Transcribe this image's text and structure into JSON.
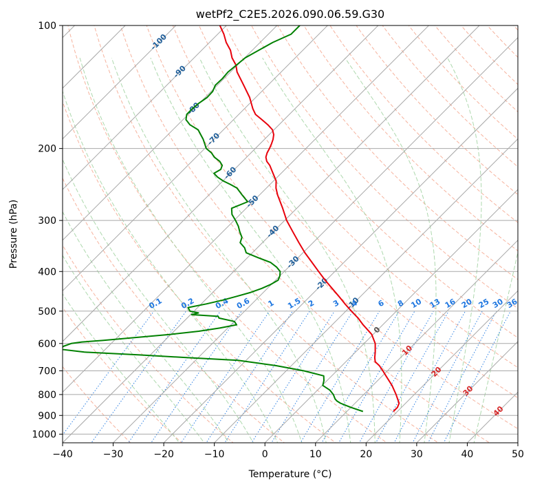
{
  "chart_data": {
    "type": "line",
    "chart_kind": "skew-T log-P diagram",
    "title": "wetPf2_C2E5.2026.090.06.59.G30",
    "xlabel": "Temperature (°C)",
    "ylabel": "Pressure (hPa)",
    "xlim": [
      -40,
      50
    ],
    "ylim": [
      1050,
      100
    ],
    "y_scale": "log",
    "skew_degrees": 45,
    "grid": true,
    "x_ticks": [
      -40,
      -30,
      -20,
      -10,
      0,
      10,
      20,
      30,
      40,
      50
    ],
    "y_ticks": [
      1000,
      900,
      800,
      700,
      600,
      500,
      400,
      300,
      200,
      100
    ],
    "x_tick_labels": [
      "−40",
      "−30",
      "−20",
      "−10",
      "0",
      "10",
      "20",
      "30",
      "40",
      "50"
    ],
    "y_tick_labels": [
      "1000",
      "900",
      "800",
      "700",
      "600",
      "500",
      "400",
      "300",
      "200",
      "100"
    ],
    "colors": {
      "temperature": "#e8000b",
      "dewpoint": "#008000",
      "isotherm": "#a8a8a8",
      "dry_adiabat": "#f4a58c",
      "moist_adiabat": "#9fd19f",
      "mixing_ratio": "#1f77e0",
      "isotherm_label": "#1f5e99",
      "wetbulb_label": "#d62728"
    },
    "isotherm_labels": [
      {
        "t": -100,
        "p": 110,
        "text": "-100"
      },
      {
        "t": -90,
        "p": 130,
        "text": "-90"
      },
      {
        "t": -80,
        "p": 160,
        "text": "-80"
      },
      {
        "t": -70,
        "p": 190,
        "text": "-70"
      },
      {
        "t": -60,
        "p": 230,
        "text": "-60"
      },
      {
        "t": -50,
        "p": 270,
        "text": "-50"
      },
      {
        "t": -40,
        "p": 320,
        "text": "-40"
      },
      {
        "t": -30,
        "p": 380,
        "text": "-30"
      },
      {
        "t": -20,
        "p": 430,
        "text": "-20"
      },
      {
        "t": -10,
        "p": 480,
        "text": "-10"
      }
    ],
    "mixing_ratio_labels": [
      {
        "w": 0.1,
        "text": "0.1"
      },
      {
        "w": 0.2,
        "text": "0.2"
      },
      {
        "w": 0.4,
        "text": "0.4"
      },
      {
        "w": 0.6,
        "text": "0.6"
      },
      {
        "w": 1,
        "text": "1"
      },
      {
        "w": 1.5,
        "text": "1.5"
      },
      {
        "w": 2,
        "text": "2"
      },
      {
        "w": 3,
        "text": "3"
      },
      {
        "w": 4,
        "text": "4"
      },
      {
        "w": 6,
        "text": "6"
      },
      {
        "w": 8,
        "text": "8"
      },
      {
        "w": 10,
        "text": "10"
      },
      {
        "w": 13,
        "text": "13"
      },
      {
        "w": 16,
        "text": "16"
      },
      {
        "w": 20,
        "text": "20"
      },
      {
        "w": 25,
        "text": "25"
      },
      {
        "w": 30,
        "text": "30"
      },
      {
        "w": 36,
        "text": "36"
      }
    ],
    "wetbulb_labels": [
      {
        "t": 0,
        "p": 557,
        "text": "0"
      },
      {
        "t": 10,
        "p": 625,
        "text": "10"
      },
      {
        "t": 20,
        "p": 705,
        "text": "20"
      },
      {
        "t": 30,
        "p": 785,
        "text": "30"
      },
      {
        "t": 40,
        "p": 880,
        "text": "40"
      }
    ],
    "series": [
      {
        "id": "temperature",
        "p": [
          880,
          860,
          840,
          800,
          760,
          720,
          700,
          680,
          665,
          650,
          630,
          600,
          570,
          540,
          520,
          500,
          480,
          460,
          440,
          420,
          400,
          380,
          360,
          340,
          320,
          300,
          280,
          260,
          250,
          240,
          230,
          220,
          215,
          210,
          205,
          200,
          195,
          190,
          185,
          180,
          175,
          170,
          165,
          160,
          150,
          140,
          130,
          125,
          120,
          115,
          110,
          105,
          100
        ],
        "t": [
          19.2,
          19.2,
          18.7,
          16.4,
          13.8,
          10.7,
          9.1,
          7.4,
          5.8,
          4.9,
          3.9,
          2.2,
          -0.3,
          -3.9,
          -6.2,
          -8.9,
          -11.6,
          -14.3,
          -17.2,
          -20.2,
          -23.2,
          -26.3,
          -29.6,
          -32.8,
          -36.1,
          -39.6,
          -42.8,
          -46.4,
          -48.1,
          -49.5,
          -51.6,
          -53.8,
          -55.2,
          -56.2,
          -56.8,
          -57.2,
          -57.7,
          -58.3,
          -59.1,
          -60.3,
          -62.2,
          -64.4,
          -66.7,
          -68.3,
          -71.2,
          -74.8,
          -78.7,
          -80.3,
          -82.5,
          -84.3,
          -86.7,
          -88.8,
          -91.3
        ]
      },
      {
        "id": "dewpoint",
        "p": [
          880,
          860,
          840,
          830,
          820,
          800,
          780,
          760,
          740,
          720,
          700,
          680,
          660,
          650,
          640,
          630,
          620,
          610,
          600,
          595,
          590,
          580,
          570,
          560,
          550,
          540,
          530,
          520,
          515,
          510,
          505,
          500,
          490,
          480,
          470,
          460,
          450,
          440,
          430,
          420,
          410,
          400,
          390,
          380,
          370,
          360,
          350,
          340,
          330,
          320,
          310,
          300,
          290,
          280,
          270,
          260,
          250,
          245,
          240,
          235,
          230,
          225,
          220,
          215,
          210,
          205,
          200,
          190,
          180,
          175,
          170,
          165,
          160,
          155,
          150,
          145,
          140,
          135,
          130,
          120,
          110,
          105,
          100
        ],
        "t": [
          13.2,
          10.0,
          7.1,
          6.0,
          5.2,
          4.0,
          2.4,
          0.1,
          -0.6,
          -1.6,
          -6.5,
          -13.0,
          -21.6,
          -32.0,
          -42.1,
          -53.6,
          -58.8,
          -58.9,
          -57.9,
          -56.1,
          -52.3,
          -46.2,
          -40.1,
          -35.1,
          -31.6,
          -28.9,
          -30.0,
          -33.7,
          -34.2,
          -39.8,
          -38.8,
          -40.8,
          -41.9,
          -39.0,
          -36.5,
          -34.5,
          -32.5,
          -31.1,
          -30.1,
          -29.5,
          -30.0,
          -30.8,
          -32.4,
          -34.5,
          -37.9,
          -41.2,
          -42.5,
          -44.4,
          -45.1,
          -46.6,
          -48.0,
          -49.7,
          -51.6,
          -52.9,
          -51.0,
          -53.4,
          -55.8,
          -57.8,
          -60.0,
          -61.8,
          -63.3,
          -62.7,
          -63.2,
          -64.5,
          -66.4,
          -67.8,
          -69.7,
          -72.1,
          -75.0,
          -77.6,
          -79.4,
          -80.3,
          -80.3,
          -80.1,
          -79.6,
          -79.7,
          -80.4,
          -80.3,
          -80.5,
          -79.9,
          -77.5,
          -75.5,
          -75.5
        ]
      }
    ]
  }
}
